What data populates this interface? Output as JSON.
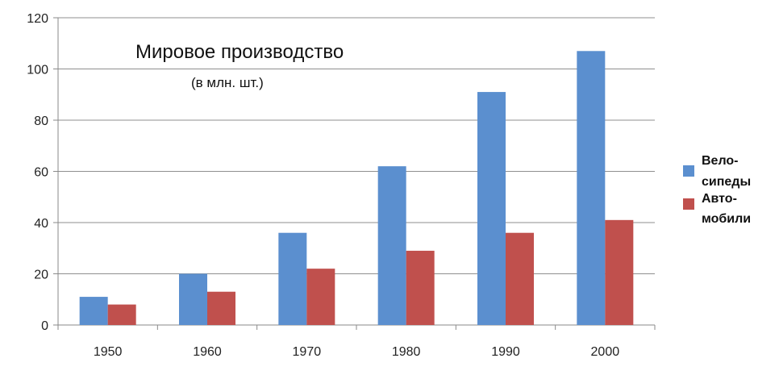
{
  "chart_data": {
    "type": "bar",
    "title": "Мировое производство",
    "subtitle": "(в млн. шт.)",
    "categories": [
      "1950",
      "1960",
      "1970",
      "1980",
      "1990",
      "2000"
    ],
    "series": [
      {
        "name_line1": "Вело-",
        "name_line2": "сипеды",
        "color": "#5b8fcf",
        "values": [
          11,
          20,
          36,
          62,
          91,
          107
        ]
      },
      {
        "name_line1": "Авто-",
        "name_line2": "мобили",
        "color": "#c0504d",
        "values": [
          8,
          13,
          22,
          29,
          36,
          41
        ]
      }
    ],
    "ylim": [
      0,
      120
    ],
    "yticks": [
      0,
      20,
      40,
      60,
      80,
      100,
      120
    ],
    "grid": true,
    "legend_position": "right"
  }
}
